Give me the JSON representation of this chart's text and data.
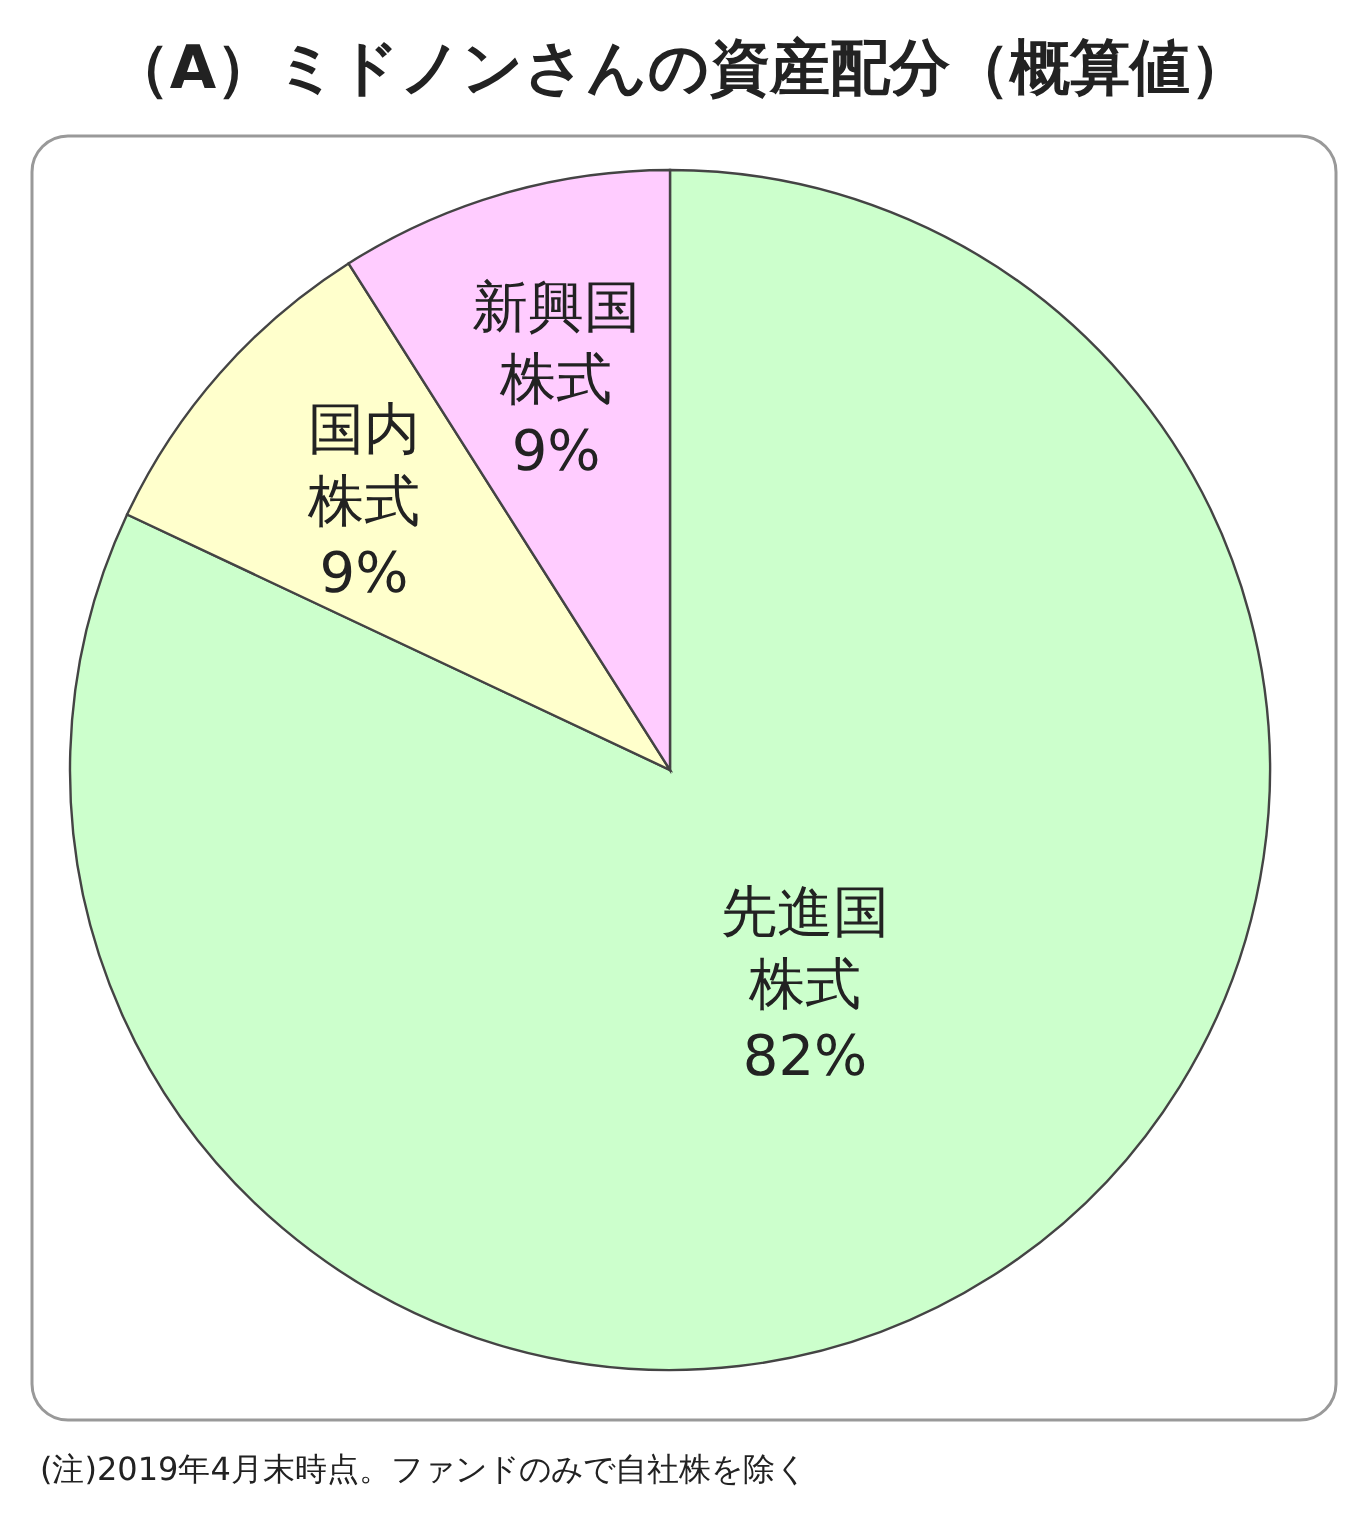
{
  "chart_data": {
    "type": "pie",
    "title": "（A）ミドノンさんの資産配分（概算値）",
    "categories": [
      "先進国株式",
      "国内株式",
      "新興国株式"
    ],
    "value_labels": [
      "82%",
      "9%",
      "9%"
    ],
    "values": [
      82,
      9,
      9
    ],
    "colors": [
      "#ccffcc",
      "#ffffcc",
      "#ffccff"
    ],
    "annotations": [
      "(注)2019年4月末時点。ファンドのみで自社株を除く"
    ]
  }
}
